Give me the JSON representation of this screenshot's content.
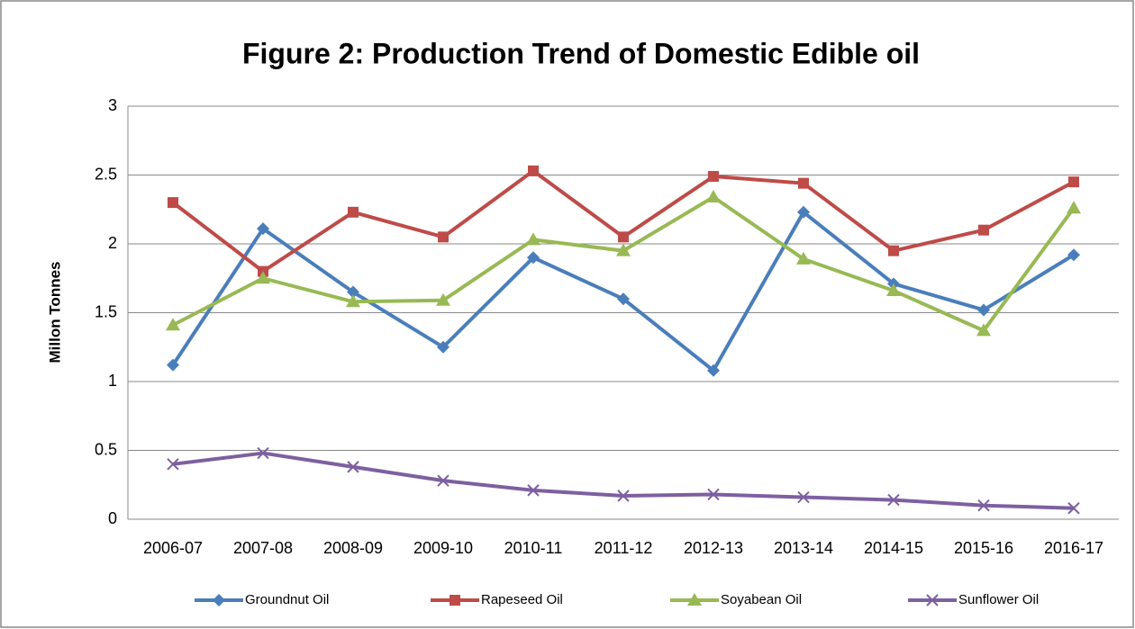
{
  "chart_data": {
    "type": "line",
    "title": "Figure 2: Production Trend of Domestic Edible oil",
    "y_label": "Millon Tonnes",
    "categories": [
      "2006-07",
      "2007-08",
      "2008-09",
      "2009-10",
      "2010-11",
      "2011-12",
      "2012-13",
      "2013-14",
      "2014-15",
      "2015-16",
      "2016-17"
    ],
    "series": [
      {
        "name": "Groundnut Oil",
        "color": "#4a7ebb",
        "marker": "diamond",
        "values": [
          1.12,
          2.11,
          1.65,
          1.25,
          1.9,
          1.6,
          1.08,
          2.23,
          1.71,
          1.52,
          1.92
        ]
      },
      {
        "name": "Rapeseed Oil",
        "color": "#be4b48",
        "marker": "square",
        "values": [
          2.3,
          1.8,
          2.23,
          2.05,
          2.53,
          2.05,
          2.49,
          2.44,
          1.95,
          2.1,
          2.45
        ]
      },
      {
        "name": "Soyabean Oil",
        "color": "#98b954",
        "marker": "triangle",
        "values": [
          1.41,
          1.75,
          1.58,
          1.59,
          2.03,
          1.95,
          2.34,
          1.89,
          1.66,
          1.37,
          2.26
        ]
      },
      {
        "name": "Sunflower Oil",
        "color": "#7d60a0",
        "marker": "x",
        "values": [
          0.4,
          0.48,
          0.38,
          0.28,
          0.21,
          0.17,
          0.18,
          0.16,
          0.14,
          0.1,
          0.08
        ]
      }
    ],
    "ylim": [
      0,
      3
    ],
    "yticks": [
      0,
      0.5,
      1,
      1.5,
      2,
      2.5,
      3
    ],
    "grid": true,
    "legend": "bottom"
  }
}
